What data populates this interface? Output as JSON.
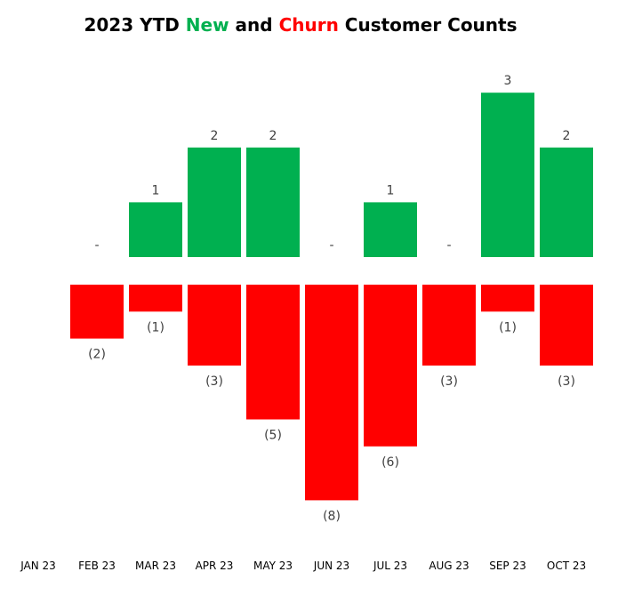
{
  "chart_data": {
    "type": "bar",
    "title": {
      "part1": "2023 YTD ",
      "part2": "New",
      "part3": " and ",
      "part4": "Churn",
      "part5": " Customer Counts"
    },
    "categories": [
      "JAN 23",
      "FEB 23",
      "MAR 23",
      "APR 23",
      "MAY 23",
      "JUN 23",
      "JUL 23",
      "AUG 23",
      "SEP 23",
      "OCT 23"
    ],
    "series": [
      {
        "name": "New",
        "color": "#00b050",
        "values": [
          null,
          0,
          1,
          2,
          2,
          0,
          1,
          0,
          3,
          2
        ],
        "labels": [
          "",
          "-",
          "1",
          "2",
          "2",
          "-",
          "1",
          "-",
          "3",
          "2"
        ]
      },
      {
        "name": "Churn",
        "color": "#ff0000",
        "values": [
          null,
          -2,
          -1,
          -3,
          -5,
          -8,
          -6,
          -3,
          -1,
          -3
        ],
        "labels": [
          "",
          "(2)",
          "(1)",
          "(3)",
          "(5)",
          "(8)",
          "(6)",
          "(3)",
          "(1)",
          "(3)"
        ]
      }
    ],
    "xlabel": "",
    "ylabel": "",
    "grid": false,
    "legend": "none"
  }
}
